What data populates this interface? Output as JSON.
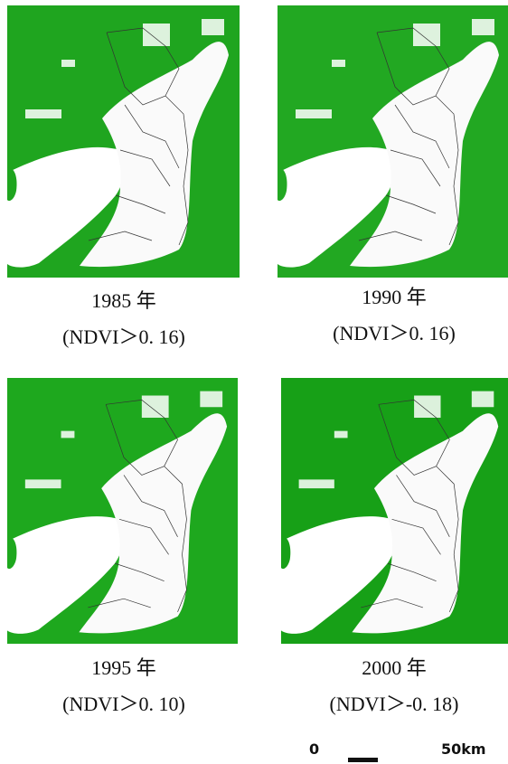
{
  "panels": [
    {
      "year": "1985 年",
      "threshold": "(NDVI＞0. 16)"
    },
    {
      "year": "1990 年",
      "threshold": "(NDVI＞0. 16)"
    },
    {
      "year": "1995 年",
      "threshold": "(NDVI＞0. 10)"
    },
    {
      "year": "2000 年",
      "threshold": "(NDVI＞-0. 18)"
    }
  ],
  "scale_bar": {
    "start": "0",
    "end": "50km"
  }
}
